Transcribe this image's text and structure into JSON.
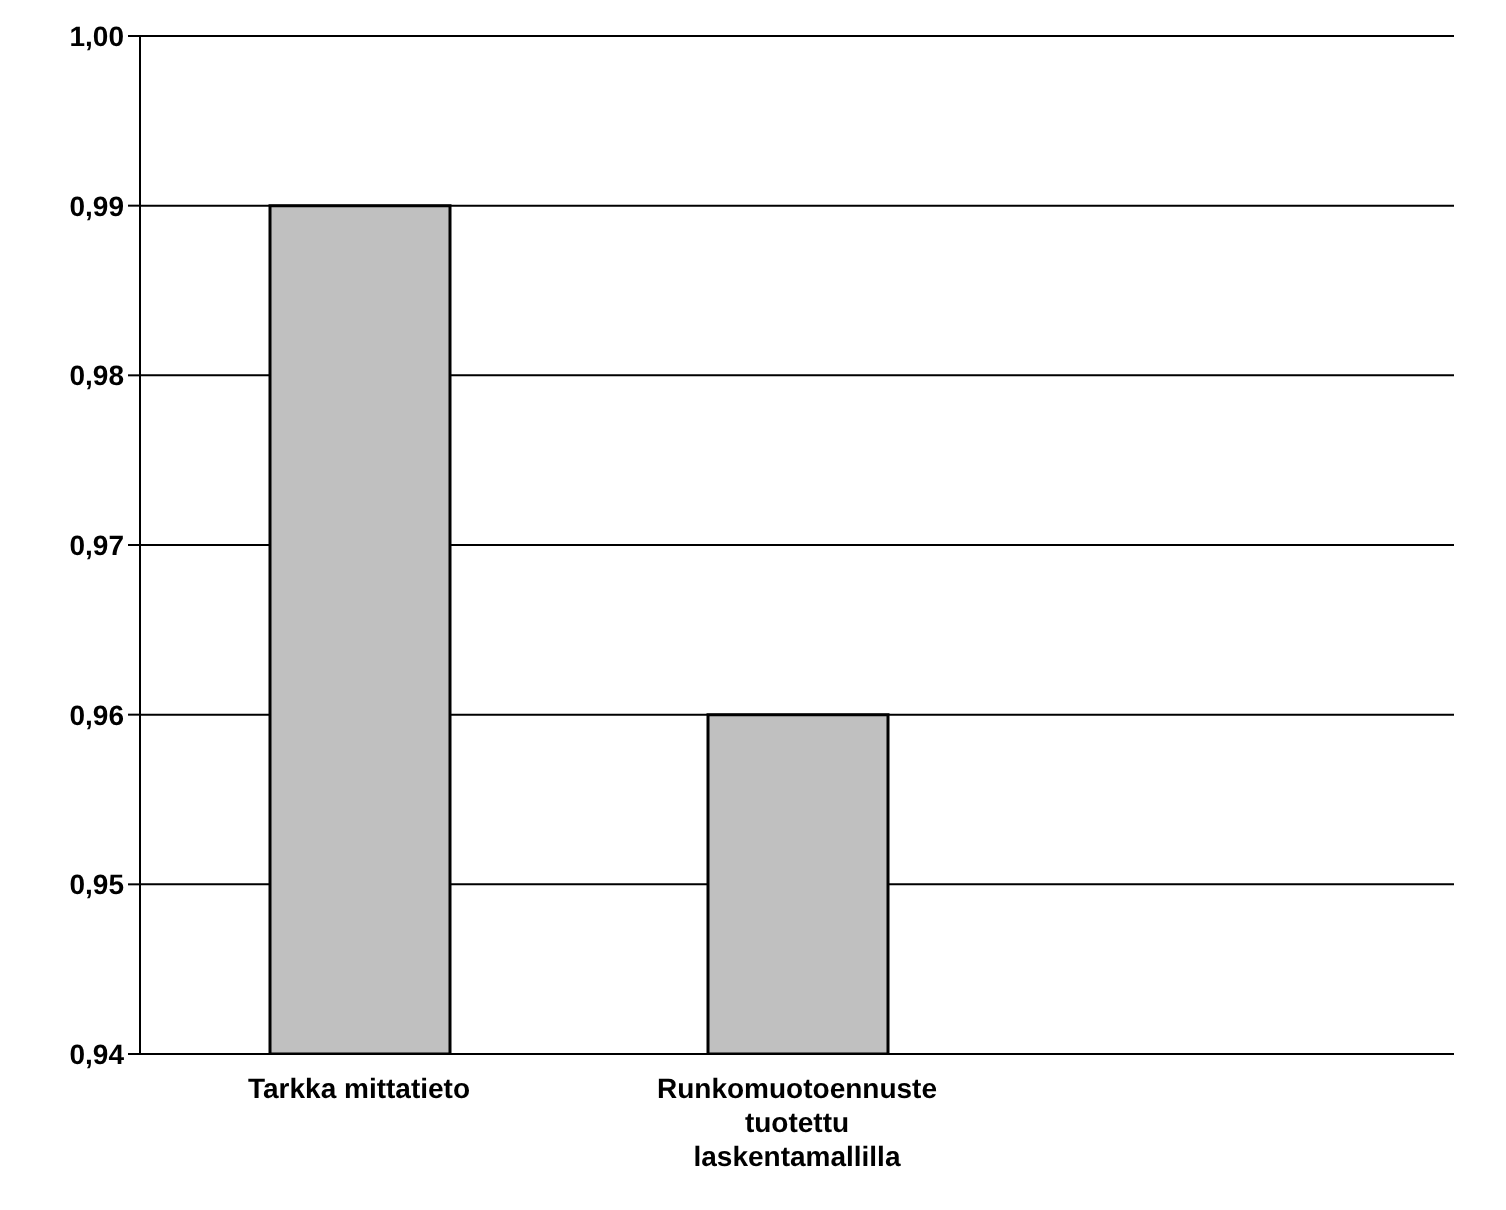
{
  "chart_data": {
    "type": "bar",
    "categories": [
      "Tarkka mittatieto",
      "Runkomuotoennuste tuotettu laskentamallilla",
      null
    ],
    "values": [
      0.99,
      0.96,
      null
    ],
    "color": "#c0c0c0",
    "ylim": [
      0.94,
      1.0
    ],
    "yticks": [
      {
        "value": 0.94,
        "label": "0,94"
      },
      {
        "value": 0.95,
        "label": "0,95"
      },
      {
        "value": 0.96,
        "label": "0,96"
      },
      {
        "value": 0.97,
        "label": "0,97"
      },
      {
        "value": 0.98,
        "label": "0,98"
      },
      {
        "value": 0.99,
        "label": "0,99"
      },
      {
        "value": 1.0,
        "label": "1,00"
      }
    ],
    "grid": "y",
    "legend": false
  }
}
